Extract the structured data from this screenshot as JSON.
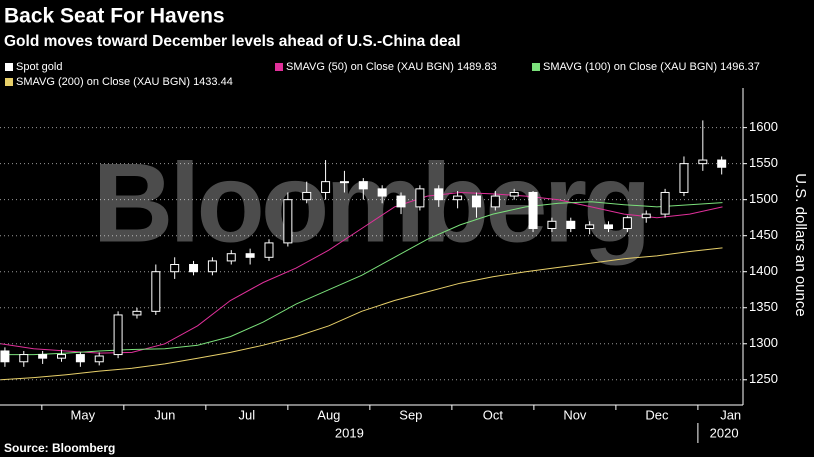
{
  "chart_data": {
    "type": "candlestick",
    "title": "Back Seat For Havens",
    "subtitle": "Gold moves toward December levels ahead of U.S.-China deal",
    "y_label": "U.S. dollars an ounce",
    "source": "Source: Bloomberg",
    "watermark": "Bloomberg",
    "xlim": [
      3.49,
      12.55
    ],
    "xticks": [
      {
        "value": 4.5,
        "label": "May"
      },
      {
        "value": 5.5,
        "label": "Jun"
      },
      {
        "value": 6.5,
        "label": "Jul"
      },
      {
        "value": 7.5,
        "label": "Aug"
      },
      {
        "value": 8.5,
        "label": "Sep"
      },
      {
        "value": 9.5,
        "label": "Oct"
      },
      {
        "value": 10.5,
        "label": "Nov"
      },
      {
        "value": 11.5,
        "label": "Dec"
      },
      {
        "value": 12.4,
        "label": "Jan"
      }
    ],
    "xminorticks": [
      4,
      5,
      6,
      7,
      8,
      9,
      10,
      11,
      12
    ],
    "x_groups": [
      {
        "value": 7.75,
        "label": "2019"
      },
      {
        "value": 12.32,
        "label": "2020"
      }
    ],
    "x_group_divider": 12,
    "ylim": [
      1215,
      1655
    ],
    "yticks": [
      1250,
      1300,
      1350,
      1400,
      1450,
      1500,
      1550,
      1600
    ],
    "x": [
      3.55,
      3.78,
      4.01,
      4.24,
      4.47,
      4.7,
      4.93,
      5.16,
      5.39,
      5.62,
      5.85,
      6.08,
      6.31,
      6.54,
      6.77,
      7.0,
      7.23,
      7.46,
      7.69,
      7.92,
      8.15,
      8.38,
      8.61,
      8.84,
      9.07,
      9.3,
      9.53,
      9.76,
      9.99,
      10.22,
      10.45,
      10.68,
      10.91,
      11.14,
      11.37,
      11.6,
      11.83,
      12.06,
      12.29
    ],
    "series": [
      {
        "name": "Spot gold",
        "color": "#ffffff",
        "type": "candlestick",
        "open": [
          1290,
          1275,
          1285,
          1280,
          1285,
          1275,
          1285,
          1340,
          1345,
          1400,
          1410,
          1400,
          1415,
          1425,
          1420,
          1440,
          1500,
          1510,
          1525,
          1525,
          1515,
          1505,
          1490,
          1515,
          1500,
          1505,
          1490,
          1505,
          1510,
          1460,
          1470,
          1460,
          1465,
          1460,
          1475,
          1480,
          1510,
          1550,
          1555
        ],
        "high": [
          1295,
          1290,
          1290,
          1292,
          1288,
          1288,
          1345,
          1350,
          1410,
          1420,
          1415,
          1420,
          1430,
          1432,
          1445,
          1510,
          1525,
          1555,
          1540,
          1530,
          1520,
          1510,
          1520,
          1520,
          1512,
          1510,
          1512,
          1515,
          1512,
          1475,
          1475,
          1470,
          1470,
          1478,
          1485,
          1515,
          1560,
          1610,
          1560
        ],
        "low": [
          1268,
          1268,
          1272,
          1275,
          1268,
          1270,
          1280,
          1335,
          1340,
          1390,
          1395,
          1395,
          1410,
          1410,
          1415,
          1435,
          1495,
          1500,
          1510,
          1500,
          1495,
          1480,
          1485,
          1490,
          1488,
          1475,
          1485,
          1500,
          1455,
          1455,
          1455,
          1452,
          1455,
          1455,
          1468,
          1475,
          1505,
          1540,
          1535
        ],
        "close": [
          1275,
          1285,
          1280,
          1285,
          1275,
          1283,
          1340,
          1345,
          1400,
          1410,
          1400,
          1415,
          1425,
          1420,
          1440,
          1500,
          1510,
          1525,
          1525,
          1515,
          1505,
          1490,
          1515,
          1500,
          1505,
          1490,
          1505,
          1510,
          1460,
          1470,
          1460,
          1465,
          1460,
          1475,
          1480,
          1510,
          1550,
          1555,
          1545
        ]
      },
      {
        "name": "SMAVG (50)  on Close (XAU BGN) 1489.83",
        "color": "#e0309a",
        "type": "line",
        "x": [
          3.5,
          3.9,
          4.3,
          4.7,
          5.1,
          5.5,
          5.9,
          6.3,
          6.7,
          7.1,
          7.5,
          7.9,
          8.3,
          8.7,
          9.1,
          9.5,
          9.9,
          10.3,
          10.7,
          11.1,
          11.5,
          11.9,
          12.3
        ],
        "values": [
          1300,
          1293,
          1290,
          1287,
          1288,
          1300,
          1325,
          1360,
          1385,
          1405,
          1430,
          1460,
          1490,
          1505,
          1510,
          1508,
          1505,
          1500,
          1490,
          1480,
          1475,
          1480,
          1490
        ]
      },
      {
        "name": "SMAVG (100)  on Close (XAU BGN) 1496.37",
        "color": "#7be07b",
        "type": "line",
        "x": [
          3.5,
          3.9,
          4.3,
          4.7,
          5.1,
          5.5,
          5.9,
          6.3,
          6.7,
          7.1,
          7.5,
          7.9,
          8.3,
          8.7,
          9.1,
          9.5,
          9.9,
          10.3,
          10.7,
          11.1,
          11.5,
          11.9,
          12.3
        ],
        "values": [
          1285,
          1285,
          1287,
          1290,
          1292,
          1293,
          1298,
          1310,
          1330,
          1355,
          1375,
          1395,
          1420,
          1445,
          1465,
          1480,
          1490,
          1495,
          1497,
          1493,
          1490,
          1493,
          1496
        ]
      },
      {
        "name": "SMAVG (200)  on Close (XAU BGN) 1433.44",
        "color": "#e8d06a",
        "type": "line",
        "x": [
          3.5,
          3.9,
          4.3,
          4.7,
          5.1,
          5.5,
          5.9,
          6.3,
          6.7,
          7.1,
          7.5,
          7.9,
          8.3,
          8.7,
          9.1,
          9.5,
          9.9,
          10.3,
          10.7,
          11.1,
          11.5,
          11.9,
          12.3
        ],
        "values": [
          1250,
          1253,
          1257,
          1262,
          1266,
          1272,
          1280,
          1288,
          1298,
          1310,
          1325,
          1345,
          1360,
          1372,
          1384,
          1393,
          1400,
          1406,
          1412,
          1418,
          1422,
          1428,
          1433
        ]
      }
    ]
  }
}
